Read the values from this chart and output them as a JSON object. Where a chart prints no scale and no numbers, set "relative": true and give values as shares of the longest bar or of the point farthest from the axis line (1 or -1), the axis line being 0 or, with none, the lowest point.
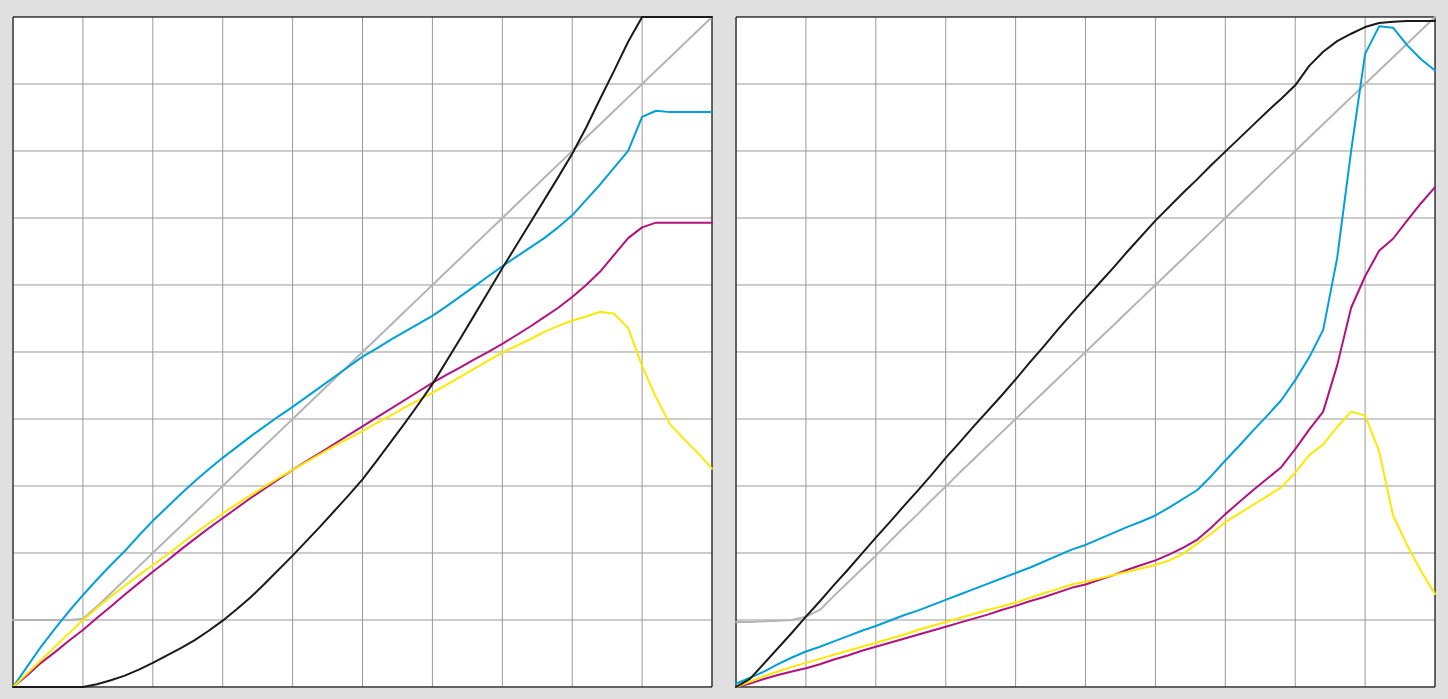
{
  "chart_data": [
    {
      "type": "line",
      "relative": true,
      "grid": true,
      "categories": [
        null,
        null,
        null,
        null,
        null,
        null,
        null,
        null,
        null,
        null,
        null,
        null,
        null,
        null,
        null,
        null,
        null,
        null,
        null,
        null,
        null,
        null,
        null,
        null,
        null,
        null,
        null,
        null,
        null,
        null,
        null,
        null,
        null,
        null,
        null,
        null,
        null,
        null,
        null,
        null,
        null,
        null,
        null,
        null,
        null,
        null,
        null,
        null,
        null,
        null,
        null
      ],
      "series": [
        {
          "color": "#b4b4b4",
          "values": [
            0.1,
            0.1,
            0.1,
            0.1,
            0.1,
            0.102,
            0.12,
            0.14,
            0.16,
            0.18,
            0.2,
            0.22,
            0.24,
            0.26,
            0.28,
            0.3,
            0.32,
            0.34,
            0.36,
            0.38,
            0.4,
            0.42,
            0.44,
            0.46,
            0.48,
            0.5,
            0.52,
            0.54,
            0.56,
            0.58,
            0.6,
            0.62,
            0.64,
            0.66,
            0.68,
            0.7,
            0.72,
            0.74,
            0.76,
            0.78,
            0.8,
            0.82,
            0.84,
            0.86,
            0.88,
            0.9,
            0.92,
            0.94,
            0.96,
            0.98,
            1.0
          ]
        },
        {
          "color": "#00a0d8",
          "values": [
            0,
            0.03,
            0.06,
            0.087,
            0.113,
            0.137,
            0.16,
            0.182,
            0.203,
            0.226,
            0.248,
            0.268,
            0.288,
            0.307,
            0.325,
            0.342,
            0.358,
            0.374,
            0.389,
            0.404,
            0.418,
            0.433,
            0.448,
            0.463,
            0.478,
            0.493,
            0.505,
            0.518,
            0.53,
            0.542,
            0.554,
            0.568,
            0.583,
            0.598,
            0.613,
            0.628,
            0.642,
            0.656,
            0.67,
            0.686,
            0.704,
            0.727,
            0.75,
            0.775,
            0.8,
            0.851,
            0.86,
            0.858,
            0.858,
            0.858,
            0.858
          ]
        },
        {
          "color": "#b0127f",
          "values": [
            0,
            0.017,
            0.036,
            0.052,
            0.069,
            0.085,
            0.103,
            0.12,
            0.138,
            0.155,
            0.172,
            0.188,
            0.205,
            0.221,
            0.237,
            0.252,
            0.267,
            0.282,
            0.296,
            0.31,
            0.324,
            0.337,
            0.35,
            0.363,
            0.376,
            0.389,
            0.402,
            0.415,
            0.428,
            0.441,
            0.454,
            0.466,
            0.477,
            0.489,
            0.5,
            0.512,
            0.525,
            0.538,
            0.552,
            0.566,
            0.582,
            0.6,
            0.62,
            0.645,
            0.67,
            0.686,
            0.693,
            0.693,
            0.693,
            0.693,
            0.693
          ]
        },
        {
          "color": "#ffe800",
          "values": [
            0,
            0.02,
            0.04,
            0.06,
            0.08,
            0.1,
            0.118,
            0.135,
            0.151,
            0.167,
            0.182,
            0.197,
            0.213,
            0.229,
            0.244,
            0.259,
            0.273,
            0.286,
            0.299,
            0.312,
            0.324,
            0.336,
            0.348,
            0.36,
            0.371,
            0.382,
            0.394,
            0.405,
            0.417,
            0.428,
            0.439,
            0.451,
            0.463,
            0.475,
            0.487,
            0.499,
            0.509,
            0.519,
            0.53,
            0.539,
            0.547,
            0.553,
            0.56,
            0.557,
            0.536,
            0.479,
            0.432,
            0.392,
            0.37,
            0.349,
            0.326
          ]
        },
        {
          "color": "#1a1a1a",
          "values": [
            0,
            0,
            0,
            0,
            0,
            0,
            0.004,
            0.01,
            0.017,
            0.026,
            0.036,
            0.047,
            0.058,
            0.07,
            0.084,
            0.099,
            0.116,
            0.134,
            0.154,
            0.175,
            0.196,
            0.218,
            0.24,
            0.263,
            0.286,
            0.31,
            0.337,
            0.365,
            0.393,
            0.422,
            0.452,
            0.486,
            0.52,
            0.555,
            0.59,
            0.625,
            0.659,
            0.693,
            0.727,
            0.761,
            0.796,
            0.835,
            0.878,
            0.92,
            0.963,
            1.0,
            1.0,
            1.0,
            1.0,
            1.0,
            1.0
          ]
        }
      ]
    },
    {
      "type": "line",
      "relative": true,
      "grid": true,
      "categories": [
        null,
        null,
        null,
        null,
        null,
        null,
        null,
        null,
        null,
        null,
        null,
        null,
        null,
        null,
        null,
        null,
        null,
        null,
        null,
        null,
        null,
        null,
        null,
        null,
        null,
        null,
        null,
        null,
        null,
        null,
        null,
        null,
        null,
        null,
        null,
        null,
        null,
        null,
        null,
        null,
        null,
        null,
        null,
        null,
        null,
        null,
        null,
        null,
        null,
        null,
        null
      ],
      "series": [
        {
          "color": "#b4b4b4",
          "values": [
            0.097,
            0.097,
            0.098,
            0.099,
            0.1,
            0.105,
            0.115,
            0.136,
            0.156,
            0.176,
            0.196,
            0.217,
            0.238,
            0.258,
            0.279,
            0.299,
            0.32,
            0.34,
            0.36,
            0.38,
            0.4,
            0.42,
            0.44,
            0.46,
            0.48,
            0.5,
            0.52,
            0.54,
            0.56,
            0.58,
            0.6,
            0.62,
            0.64,
            0.66,
            0.68,
            0.7,
            0.72,
            0.74,
            0.76,
            0.78,
            0.8,
            0.82,
            0.84,
            0.86,
            0.88,
            0.9,
            0.92,
            0.94,
            0.96,
            0.98,
            1.0
          ]
        },
        {
          "color": "#00a0d8",
          "values": [
            0.005,
            0.014,
            0.023,
            0.034,
            0.044,
            0.053,
            0.06,
            0.068,
            0.076,
            0.084,
            0.091,
            0.099,
            0.107,
            0.114,
            0.122,
            0.13,
            0.138,
            0.146,
            0.154,
            0.162,
            0.17,
            0.178,
            0.187,
            0.196,
            0.205,
            0.212,
            0.221,
            0.23,
            0.239,
            0.247,
            0.256,
            0.268,
            0.281,
            0.294,
            0.315,
            0.338,
            0.36,
            0.383,
            0.405,
            0.428,
            0.458,
            0.492,
            0.533,
            0.64,
            0.8,
            0.945,
            0.986,
            0.984,
            0.958,
            0.937,
            0.92
          ]
        },
        {
          "color": "#b0127f",
          "values": [
            0,
            0.005,
            0.012,
            0.018,
            0.023,
            0.028,
            0.034,
            0.041,
            0.047,
            0.054,
            0.06,
            0.066,
            0.072,
            0.078,
            0.084,
            0.09,
            0.096,
            0.102,
            0.108,
            0.115,
            0.121,
            0.128,
            0.134,
            0.141,
            0.148,
            0.153,
            0.16,
            0.167,
            0.175,
            0.182,
            0.189,
            0.198,
            0.208,
            0.22,
            0.238,
            0.258,
            0.276,
            0.294,
            0.311,
            0.328,
            0.355,
            0.384,
            0.411,
            0.48,
            0.566,
            0.613,
            0.651,
            0.669,
            0.696,
            0.722,
            0.746
          ]
        },
        {
          "color": "#ffe800",
          "values": [
            0,
            0.008,
            0.016,
            0.023,
            0.03,
            0.036,
            0.042,
            0.048,
            0.054,
            0.06,
            0.066,
            0.072,
            0.078,
            0.085,
            0.091,
            0.097,
            0.103,
            0.109,
            0.115,
            0.12,
            0.126,
            0.133,
            0.14,
            0.146,
            0.153,
            0.157,
            0.162,
            0.167,
            0.172,
            0.177,
            0.182,
            0.189,
            0.199,
            0.214,
            0.229,
            0.246,
            0.259,
            0.272,
            0.285,
            0.298,
            0.32,
            0.346,
            0.362,
            0.388,
            0.411,
            0.405,
            0.352,
            0.256,
            0.212,
            0.173,
            0.139
          ]
        },
        {
          "color": "#1a1a1a",
          "values": [
            0,
            0.012,
            0.035,
            0.058,
            0.081,
            0.105,
            0.128,
            0.152,
            0.175,
            0.199,
            0.223,
            0.246,
            0.27,
            0.293,
            0.317,
            0.342,
            0.365,
            0.389,
            0.412,
            0.435,
            0.459,
            0.484,
            0.508,
            0.533,
            0.557,
            0.58,
            0.603,
            0.626,
            0.65,
            0.673,
            0.696,
            0.717,
            0.738,
            0.758,
            0.779,
            0.799,
            0.819,
            0.839,
            0.859,
            0.878,
            0.898,
            0.927,
            0.948,
            0.964,
            0.975,
            0.985,
            0.991,
            0.993,
            0.994,
            0.994,
            0.994
          ]
        }
      ]
    }
  ]
}
